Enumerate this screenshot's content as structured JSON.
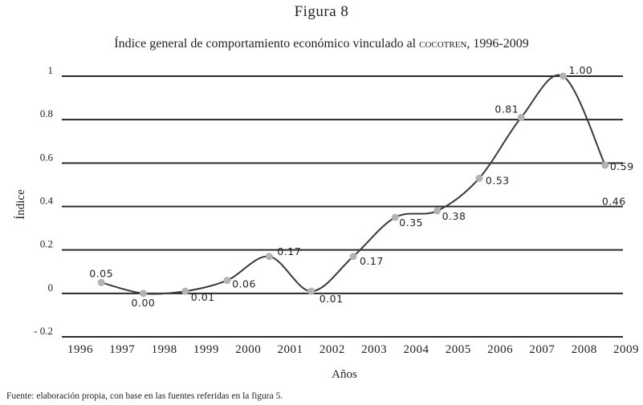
{
  "figure_label": "Figura 8",
  "title_prefix": "Índice general de comportamiento económico vinculado al ",
  "title_smallcaps": "cocotren",
  "title_suffix": ", 1996-2009",
  "source_note": "Fuente: elaboración propia, con base en las fuentes referidas en la figura 5.",
  "chart_data": {
    "type": "line",
    "title": "Índice general de comportamiento económico vinculado al COCOTREN, 1996-2009",
    "xlabel": "Años",
    "ylabel": "Índice",
    "xlim": [
      1996,
      2009
    ],
    "ylim": [
      -0.2,
      1
    ],
    "y_ticks": [
      "1",
      "0.8",
      "0.6",
      "0.4",
      "0.2",
      "0",
      "- 0.2"
    ],
    "y_tick_values": [
      1,
      0.8,
      0.6,
      0.4,
      0.2,
      0,
      -0.2
    ],
    "x_ticks": [
      "1996",
      "1997",
      "1998",
      "1999",
      "2000",
      "2001",
      "2002",
      "2003",
      "2004",
      "2005",
      "2006",
      "2007",
      "2008",
      "2009"
    ],
    "grid": "horizontal",
    "series": [
      {
        "name": "Índice general",
        "x": [
          1996.5,
          1997.5,
          1998.5,
          1999.5,
          2000.5,
          2001.5,
          2002.5,
          2003.5,
          2004.5,
          2005.5,
          2006.5,
          2007.5,
          2008.5,
          2009.5
        ],
        "values": [
          0.05,
          0.0,
          0.01,
          0.06,
          0.17,
          0.01,
          0.17,
          0.35,
          0.38,
          0.53,
          0.81,
          1.0,
          0.59,
          0.46
        ],
        "labels": [
          "0.05",
          "0.00",
          "0.01",
          "0.06",
          "0.17",
          "0.01",
          "0.17",
          "0.35",
          "0.38",
          "0.53",
          "0.81",
          "1.00",
          "0.59",
          "0.46"
        ]
      }
    ]
  }
}
